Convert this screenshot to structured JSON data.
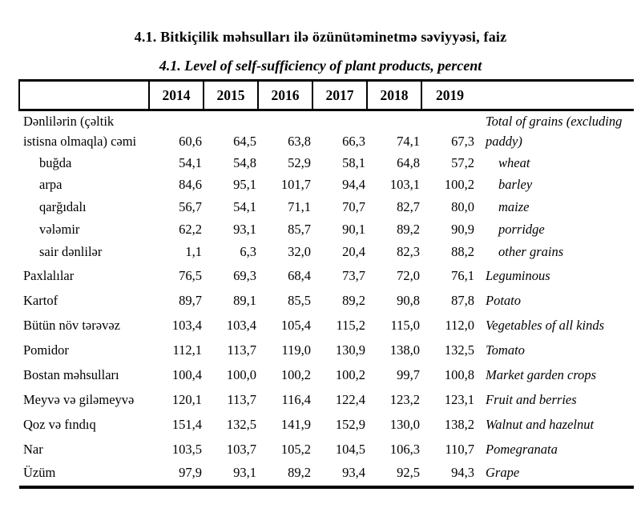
{
  "title_az": "4.1. Bitkiçilik məhsulları ilə özünütəminetmə səviyyəsi, faiz",
  "title_en": "4.1. Level of self-sufficiency of plant products, percent",
  "colors": {
    "text": "#000000",
    "background": "#ffffff",
    "border": "#000000"
  },
  "table": {
    "years": [
      "2014",
      "2015",
      "2016",
      "2017",
      "2018",
      "2019"
    ],
    "rows": [
      {
        "az": "Dənlilərin (çəltik istisna olmaqla) cəmi",
        "en": "Total of grains (excluding paddy)",
        "indent": false,
        "values": [
          "60,6",
          "64,5",
          "63,8",
          "66,3",
          "74,1",
          "67,3"
        ]
      },
      {
        "az": "buğda",
        "en": "wheat",
        "indent": true,
        "values": [
          "54,1",
          "54,8",
          "52,9",
          "58,1",
          "64,8",
          "57,2"
        ]
      },
      {
        "az": "arpa",
        "en": "barley",
        "indent": true,
        "values": [
          "84,6",
          "95,1",
          "101,7",
          "94,4",
          "103,1",
          "100,2"
        ]
      },
      {
        "az": "qarğıdalı",
        "en": "maize",
        "indent": true,
        "values": [
          "56,7",
          "54,1",
          "71,1",
          "70,7",
          "82,7",
          "80,0"
        ]
      },
      {
        "az": "vələmir",
        "en": "porridge",
        "indent": true,
        "values": [
          "62,2",
          "93,1",
          "85,7",
          "90,1",
          "89,2",
          "90,9"
        ]
      },
      {
        "az": "sair dənlilər",
        "en": "other grains",
        "indent": true,
        "values": [
          "1,1",
          "6,3",
          "32,0",
          "20,4",
          "82,3",
          "88,2"
        ]
      },
      {
        "az": "Paxlalılar",
        "en": "Leguminous",
        "indent": false,
        "values": [
          "76,5",
          "69,3",
          "68,4",
          "73,7",
          "72,0",
          "76,1"
        ]
      },
      {
        "az": "Kartof",
        "en": "Potato",
        "indent": false,
        "values": [
          "89,7",
          "89,1",
          "85,5",
          "89,2",
          "90,8",
          "87,8"
        ]
      },
      {
        "az": "Bütün növ tərəvəz",
        "en": "Vegetables of all kinds",
        "indent": false,
        "values": [
          "103,4",
          "103,4",
          "105,4",
          "115,2",
          "115,0",
          "112,0"
        ]
      },
      {
        "az": "Pomidor",
        "en": "Tomato",
        "indent": false,
        "values": [
          "112,1",
          "113,7",
          "119,0",
          "130,9",
          "138,0",
          "132,5"
        ]
      },
      {
        "az": "Bostan məhsulları",
        "en": "Market garden crops",
        "indent": false,
        "values": [
          "100,4",
          "100,0",
          "100,2",
          "100,2",
          "99,7",
          "100,8"
        ]
      },
      {
        "az": "Meyvə və giləmeyvə",
        "en": "Fruit and berries",
        "indent": false,
        "values": [
          "120,1",
          "113,7",
          "116,4",
          "122,4",
          "123,2",
          "123,1"
        ]
      },
      {
        "az": "Qoz və fındıq",
        "en": "Walnut and hazelnut",
        "indent": false,
        "values": [
          "151,4",
          "132,5",
          "141,9",
          "152,9",
          "130,0",
          "138,2"
        ]
      },
      {
        "az": "Nar",
        "en": "Pomegranata",
        "indent": false,
        "values": [
          "103,5",
          "103,7",
          "105,2",
          "104,5",
          "106,3",
          "110,7"
        ]
      },
      {
        "az": "Üzüm",
        "en": "Grape",
        "indent": false,
        "values": [
          "97,9",
          "93,1",
          "89,2",
          "93,4",
          "92,5",
          "94,3"
        ]
      }
    ]
  }
}
